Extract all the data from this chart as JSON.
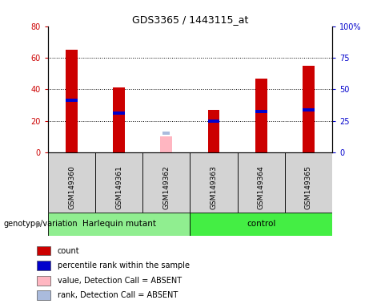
{
  "title": "GDS3365 / 1443115_at",
  "samples": [
    "GSM149360",
    "GSM149361",
    "GSM149362",
    "GSM149363",
    "GSM149364",
    "GSM149365"
  ],
  "red_values": [
    65,
    41,
    0,
    27,
    47,
    55
  ],
  "blue_values": [
    33,
    25,
    0,
    20,
    26,
    27
  ],
  "absent_pink_value": 10,
  "absent_blue_value": 12,
  "absent_flags": [
    false,
    false,
    true,
    false,
    false,
    false
  ],
  "groups": [
    {
      "name": "Harlequin mutant",
      "start": 0,
      "end": 2,
      "color": "#90ee90"
    },
    {
      "name": "control",
      "start": 3,
      "end": 5,
      "color": "#44ee44"
    }
  ],
  "ylim_left": [
    0,
    80
  ],
  "ylim_right": [
    0,
    100
  ],
  "yticks_left": [
    0,
    20,
    40,
    60,
    80
  ],
  "ytick_labels_left": [
    "0",
    "20",
    "40",
    "60",
    "80"
  ],
  "yticks_right": [
    0,
    25,
    50,
    75,
    100
  ],
  "ytick_labels_right": [
    "0",
    "25",
    "50",
    "75",
    "100%"
  ],
  "grid_lines": [
    20,
    40,
    60
  ],
  "bar_width": 0.25,
  "red_color": "#cc0000",
  "blue_color": "#0000cc",
  "pink_color": "#ffb6c1",
  "light_blue_color": "#aabbdd",
  "bg_color": "#d3d3d3",
  "plot_bg": "#ffffff",
  "legend_items": [
    {
      "color": "#cc0000",
      "label": "count"
    },
    {
      "color": "#0000cc",
      "label": "percentile rank within the sample"
    },
    {
      "color": "#ffb6c1",
      "label": "value, Detection Call = ABSENT"
    },
    {
      "color": "#aabbdd",
      "label": "rank, Detection Call = ABSENT"
    }
  ],
  "genotype_label": "genotype/variation"
}
